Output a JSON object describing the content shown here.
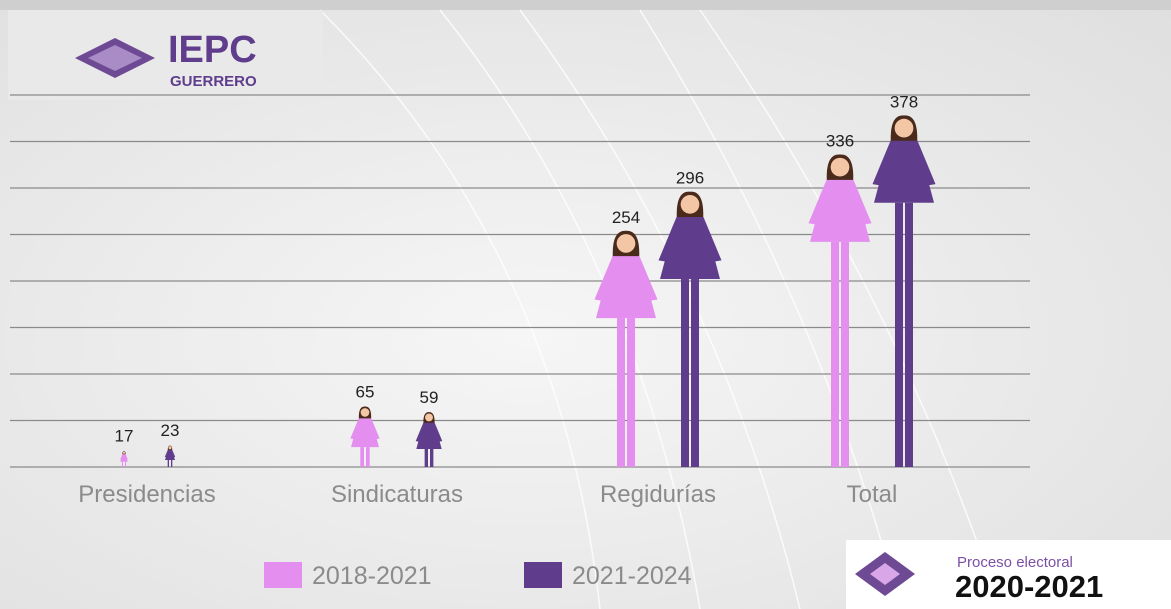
{
  "chart_data": {
    "type": "pictogram",
    "categories": [
      "Presidencias",
      "Sindicaturas",
      "Regidurías",
      "Total"
    ],
    "series": [
      {
        "name": "2018-2021",
        "color": "#e48ef0",
        "values": [
          17,
          65,
          254,
          336
        ]
      },
      {
        "name": "2021-2024",
        "color": "#5f3d8c",
        "values": [
          23,
          59,
          296,
          378
        ]
      }
    ],
    "ylim": [
      0,
      400
    ],
    "yticks": [
      0,
      50,
      100,
      150,
      200,
      250,
      300,
      350,
      400
    ],
    "grid": true
  },
  "branding": {
    "logo_name": "IEPC",
    "logo_sub": "GUERRERO",
    "badge_label": "Proceso electoral",
    "badge_years": "2020-2021"
  }
}
